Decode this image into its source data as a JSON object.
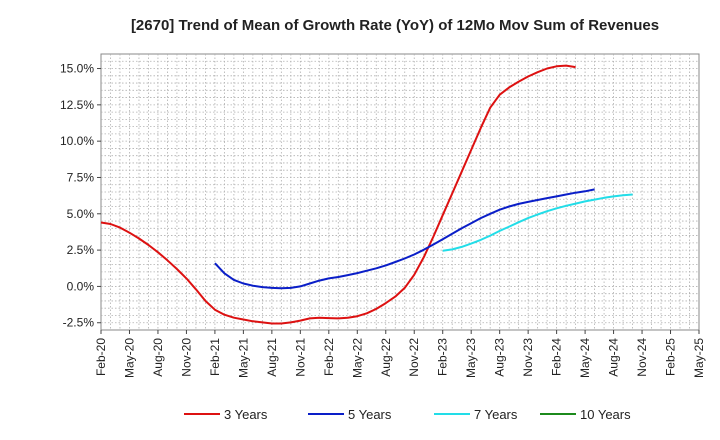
{
  "chart_data": {
    "type": "line",
    "title": "[2670]  Trend of Mean of Growth Rate (YoY) of 12Mo Mov Sum of Revenues",
    "xlabel": "",
    "ylabel": "",
    "x_tick_labels": [
      "Feb-20",
      "May-20",
      "Aug-20",
      "Nov-20",
      "Feb-21",
      "May-21",
      "Aug-21",
      "Nov-21",
      "Feb-22",
      "May-22",
      "Aug-22",
      "Nov-22",
      "Feb-23",
      "May-23",
      "Aug-23",
      "Nov-23",
      "Feb-24",
      "May-24",
      "Aug-24",
      "Nov-24",
      "Feb-25",
      "May-25"
    ],
    "y_ticks": [
      -2.5,
      0.0,
      2.5,
      5.0,
      7.5,
      10.0,
      12.5,
      15.0
    ],
    "y_tick_labels": [
      "-2.5%",
      "0.0%",
      "2.5%",
      "5.0%",
      "7.5%",
      "10.0%",
      "12.5%",
      "15.0%"
    ],
    "ylim": [
      -3.0,
      16.0
    ],
    "x_range_months": [
      0,
      63
    ],
    "grid": true,
    "legend_position": "bottom",
    "series": [
      {
        "name": "3 Years",
        "color": "#dd1111",
        "points": [
          [
            0,
            4.4
          ],
          [
            1,
            4.3
          ],
          [
            2,
            4.05
          ],
          [
            3,
            3.7
          ],
          [
            4,
            3.3
          ],
          [
            5,
            2.85
          ],
          [
            6,
            2.35
          ],
          [
            7,
            1.8
          ],
          [
            8,
            1.2
          ],
          [
            9,
            0.55
          ],
          [
            10,
            -0.2
          ],
          [
            11,
            -1.0
          ],
          [
            12,
            -1.6
          ],
          [
            13,
            -1.95
          ],
          [
            14,
            -2.15
          ],
          [
            15,
            -2.28
          ],
          [
            16,
            -2.4
          ],
          [
            17,
            -2.48
          ],
          [
            18,
            -2.55
          ],
          [
            19,
            -2.55
          ],
          [
            20,
            -2.48
          ],
          [
            21,
            -2.35
          ],
          [
            22,
            -2.2
          ],
          [
            23,
            -2.15
          ],
          [
            24,
            -2.18
          ],
          [
            25,
            -2.2
          ],
          [
            26,
            -2.15
          ],
          [
            27,
            -2.05
          ],
          [
            28,
            -1.85
          ],
          [
            29,
            -1.55
          ],
          [
            30,
            -1.15
          ],
          [
            31,
            -0.7
          ],
          [
            32,
            -0.1
          ],
          [
            33,
            0.8
          ],
          [
            34,
            2.0
          ],
          [
            35,
            3.4
          ],
          [
            36,
            4.9
          ],
          [
            37,
            6.4
          ],
          [
            38,
            7.9
          ],
          [
            39,
            9.4
          ],
          [
            40,
            10.9
          ],
          [
            41,
            12.3
          ],
          [
            42,
            13.2
          ],
          [
            43,
            13.7
          ],
          [
            44,
            14.1
          ],
          [
            45,
            14.45
          ],
          [
            46,
            14.75
          ],
          [
            47,
            15.0
          ],
          [
            48,
            15.15
          ],
          [
            49,
            15.2
          ],
          [
            50,
            15.1
          ]
        ]
      },
      {
        "name": "5 Years",
        "color": "#0a1ec8",
        "points": [
          [
            12,
            1.6
          ],
          [
            13,
            0.9
          ],
          [
            14,
            0.45
          ],
          [
            15,
            0.2
          ],
          [
            16,
            0.05
          ],
          [
            17,
            -0.05
          ],
          [
            18,
            -0.1
          ],
          [
            19,
            -0.12
          ],
          [
            20,
            -0.1
          ],
          [
            21,
            0.0
          ],
          [
            22,
            0.2
          ],
          [
            23,
            0.4
          ],
          [
            24,
            0.55
          ],
          [
            25,
            0.65
          ],
          [
            26,
            0.78
          ],
          [
            27,
            0.92
          ],
          [
            28,
            1.08
          ],
          [
            29,
            1.25
          ],
          [
            30,
            1.45
          ],
          [
            31,
            1.68
          ],
          [
            32,
            1.92
          ],
          [
            33,
            2.2
          ],
          [
            34,
            2.52
          ],
          [
            35,
            2.88
          ],
          [
            36,
            3.25
          ],
          [
            37,
            3.62
          ],
          [
            38,
            4.0
          ],
          [
            39,
            4.35
          ],
          [
            40,
            4.7
          ],
          [
            41,
            5.0
          ],
          [
            42,
            5.28
          ],
          [
            43,
            5.5
          ],
          [
            44,
            5.68
          ],
          [
            45,
            5.82
          ],
          [
            46,
            5.95
          ],
          [
            47,
            6.08
          ],
          [
            48,
            6.2
          ],
          [
            49,
            6.33
          ],
          [
            50,
            6.45
          ],
          [
            51,
            6.55
          ],
          [
            52,
            6.68
          ]
        ]
      },
      {
        "name": "7 Years",
        "color": "#22dde8",
        "points": [
          [
            36,
            2.45
          ],
          [
            37,
            2.55
          ],
          [
            38,
            2.72
          ],
          [
            39,
            2.95
          ],
          [
            40,
            3.2
          ],
          [
            41,
            3.5
          ],
          [
            42,
            3.82
          ],
          [
            43,
            4.12
          ],
          [
            44,
            4.42
          ],
          [
            45,
            4.7
          ],
          [
            46,
            4.95
          ],
          [
            47,
            5.18
          ],
          [
            48,
            5.38
          ],
          [
            49,
            5.55
          ],
          [
            50,
            5.7
          ],
          [
            51,
            5.85
          ],
          [
            52,
            5.98
          ],
          [
            53,
            6.1
          ],
          [
            54,
            6.2
          ],
          [
            55,
            6.28
          ],
          [
            56,
            6.33
          ]
        ]
      },
      {
        "name": "10 Years",
        "color": "#1c8a1c",
        "points": []
      }
    ]
  }
}
